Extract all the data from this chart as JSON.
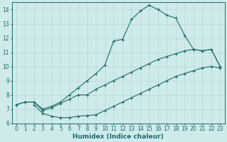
{
  "bg_color": "#ceeaea",
  "grid_color": "#b8d4d4",
  "line_color": "#1e6b6b",
  "line1_x": [
    0,
    1,
    2,
    3,
    4,
    5,
    6,
    7,
    8,
    9,
    10,
    11,
    12,
    13,
    14,
    15,
    16,
    17,
    18,
    19,
    20,
    21,
    22,
    23
  ],
  "line1_y": [
    7.3,
    7.5,
    7.5,
    7.0,
    7.2,
    7.5,
    8.0,
    8.5,
    9.0,
    9.5,
    10.1,
    11.8,
    11.9,
    13.3,
    13.9,
    14.3,
    14.0,
    13.6,
    13.4,
    12.2,
    11.2,
    11.1,
    11.2,
    10.0
  ],
  "line2_x": [
    0,
    1,
    2,
    3,
    4,
    5,
    6,
    7,
    8,
    9,
    10,
    11,
    12,
    13,
    14,
    15,
    16,
    17,
    18,
    19,
    20,
    21,
    22,
    23
  ],
  "line2_y": [
    7.3,
    7.5,
    7.5,
    6.9,
    7.1,
    7.4,
    7.7,
    8.0,
    8.0,
    8.4,
    8.7,
    9.0,
    9.3,
    9.6,
    9.9,
    10.2,
    10.5,
    10.7,
    10.9,
    11.1,
    11.2,
    11.1,
    11.2,
    10.0
  ],
  "line3_x": [
    2,
    3,
    4,
    5,
    6,
    7,
    8,
    9,
    10,
    11,
    12,
    13,
    14,
    15,
    16,
    17,
    18,
    19,
    20,
    21,
    22,
    23
  ],
  "line3_y": [
    7.3,
    6.7,
    6.5,
    6.4,
    6.4,
    6.5,
    6.55,
    6.6,
    6.9,
    7.2,
    7.5,
    7.8,
    8.1,
    8.4,
    8.7,
    9.0,
    9.3,
    9.5,
    9.7,
    9.9,
    10.0,
    9.9
  ],
  "xlabel": "Humidex (Indice chaleur)",
  "xlim": [
    -0.5,
    23.5
  ],
  "ylim": [
    6,
    14.5
  ],
  "yticks": [
    6,
    7,
    8,
    9,
    10,
    11,
    12,
    13,
    14
  ],
  "xticks": [
    0,
    1,
    2,
    3,
    4,
    5,
    6,
    7,
    8,
    9,
    10,
    11,
    12,
    13,
    14,
    15,
    16,
    17,
    18,
    19,
    20,
    21,
    22,
    23
  ],
  "marker": "+",
  "markersize": 3.5,
  "linewidth": 0.8,
  "font_color": "#1e6b6b",
  "xlabel_fontsize": 6.5,
  "tick_fontsize": 5.5
}
